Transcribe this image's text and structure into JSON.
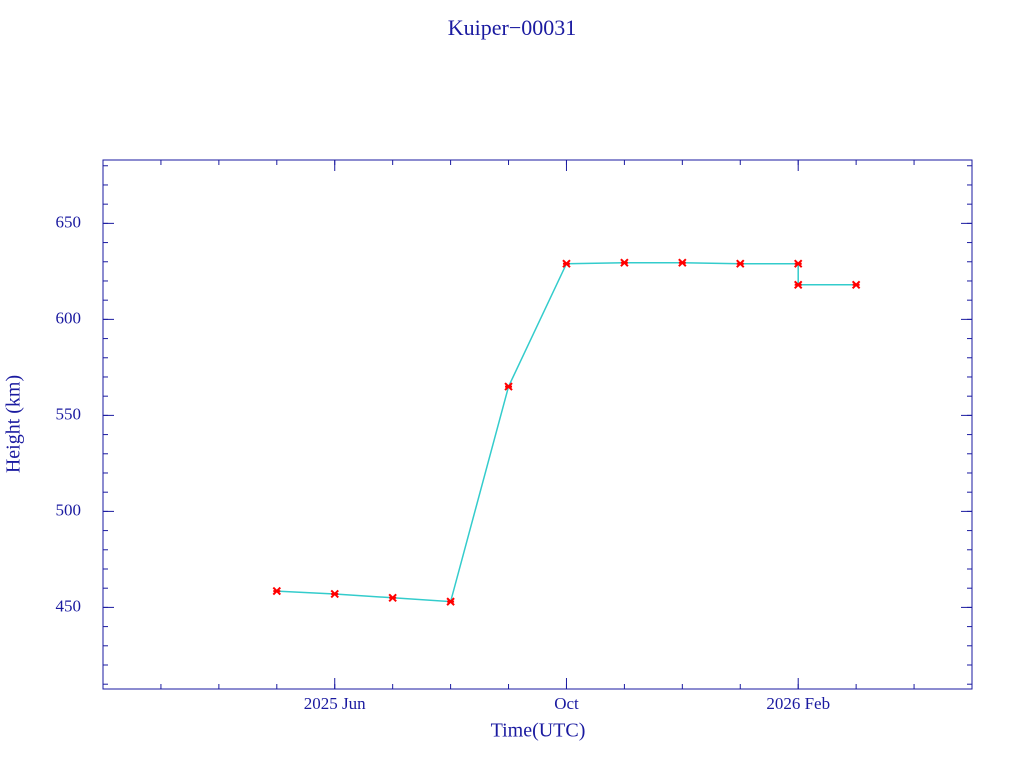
{
  "chart_data": {
    "type": "line",
    "title": "Kuiper−00031",
    "x_label": "Time(UTC)",
    "y_label": "Height (km)",
    "x": [
      "2025-05",
      "2025-06",
      "2025-07",
      "2025-08",
      "2025-09",
      "2025-10",
      "2025-11",
      "2025-12",
      "2026-01",
      "2026-02",
      "2026-02",
      "2026-03"
    ],
    "series": [
      {
        "name": "Height",
        "color": "#ff0000",
        "line_color": "#33cccc",
        "values": [
          458.5,
          457,
          455,
          453,
          565,
          629,
          629.5,
          629.5,
          629,
          629,
          618,
          618
        ]
      }
    ],
    "xlim": [
      "2025-02",
      "2026-05"
    ],
    "xticks": [
      {
        "value": "2025-06",
        "label": "2025 Jun"
      },
      {
        "value": "2025-10",
        "label": "Oct"
      },
      {
        "value": "2026-02",
        "label": "2026 Feb"
      }
    ],
    "ylim": [
      407.5,
      683
    ],
    "yticks": [
      450,
      500,
      550,
      600,
      650
    ],
    "grid": false
  }
}
